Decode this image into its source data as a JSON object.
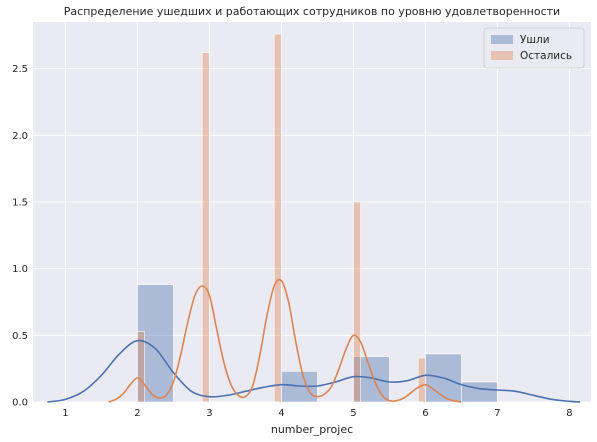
{
  "chart_data": {
    "type": "histogram",
    "title": "Распределение ушедших и работающих сотрудников по уровню удовлетворенности",
    "xlabel": "number_projec",
    "ylabel": "",
    "xlim": [
      0.55,
      8.3
    ],
    "ylim": [
      0,
      2.85
    ],
    "xticks": [
      1,
      2,
      3,
      4,
      5,
      6,
      7,
      8
    ],
    "yticks": [
      0.0,
      0.5,
      1.0,
      1.5,
      2.0,
      2.5
    ],
    "grid": true,
    "legend_position": "top-right",
    "series": [
      {
        "name": "Ушли",
        "color": "#4c72b0",
        "bins": [
          {
            "x0": 2.0,
            "x1": 2.5,
            "value": 0.88
          },
          {
            "x0": 4.0,
            "x1": 4.5,
            "value": 0.23
          },
          {
            "x0": 5.0,
            "x1": 5.5,
            "value": 0.34
          },
          {
            "x0": 6.0,
            "x1": 6.5,
            "value": 0.36
          },
          {
            "x0": 6.5,
            "x1": 7.0,
            "value": 0.15
          }
        ],
        "kde": {
          "x": [
            0.75,
            1.0,
            1.25,
            1.5,
            1.75,
            2.0,
            2.25,
            2.5,
            2.75,
            3.0,
            3.25,
            3.5,
            3.75,
            4.0,
            4.25,
            4.5,
            4.75,
            5.0,
            5.25,
            5.5,
            5.75,
            6.0,
            6.25,
            6.5,
            6.75,
            7.0,
            7.25,
            7.5,
            7.75,
            8.0,
            8.15
          ],
          "y": [
            0.0,
            0.02,
            0.08,
            0.2,
            0.36,
            0.46,
            0.4,
            0.22,
            0.08,
            0.04,
            0.05,
            0.08,
            0.11,
            0.13,
            0.12,
            0.12,
            0.15,
            0.19,
            0.18,
            0.15,
            0.16,
            0.2,
            0.18,
            0.13,
            0.1,
            0.09,
            0.08,
            0.05,
            0.02,
            0.005,
            0.0
          ]
        }
      },
      {
        "name": "Остались",
        "color": "#dd8452",
        "bins": [
          {
            "x0": 2.0,
            "x1": 2.1,
            "value": 0.53
          },
          {
            "x0": 2.9,
            "x1": 3.0,
            "value": 2.62
          },
          {
            "x0": 3.9,
            "x1": 4.0,
            "value": 2.76
          },
          {
            "x0": 5.0,
            "x1": 5.1,
            "value": 1.5
          },
          {
            "x0": 5.9,
            "x1": 6.0,
            "value": 0.33
          }
        ],
        "kde": {
          "x": [
            1.6,
            1.7,
            1.8,
            1.9,
            2.0,
            2.1,
            2.2,
            2.3,
            2.4,
            2.5,
            2.6,
            2.7,
            2.8,
            2.9,
            3.0,
            3.1,
            3.2,
            3.3,
            3.4,
            3.5,
            3.6,
            3.7,
            3.8,
            3.9,
            4.0,
            4.1,
            4.2,
            4.3,
            4.4,
            4.5,
            4.6,
            4.7,
            4.8,
            4.9,
            5.0,
            5.1,
            5.2,
            5.3,
            5.4,
            5.5,
            5.6,
            5.7,
            5.8,
            5.9,
            6.0,
            6.1,
            6.2,
            6.3,
            6.4,
            6.5
          ],
          "y": [
            0.0,
            0.02,
            0.06,
            0.13,
            0.18,
            0.13,
            0.06,
            0.03,
            0.05,
            0.15,
            0.35,
            0.6,
            0.8,
            0.87,
            0.8,
            0.55,
            0.3,
            0.13,
            0.05,
            0.04,
            0.12,
            0.35,
            0.65,
            0.87,
            0.91,
            0.75,
            0.45,
            0.2,
            0.07,
            0.04,
            0.06,
            0.12,
            0.25,
            0.4,
            0.5,
            0.45,
            0.3,
            0.15,
            0.05,
            0.01,
            0.01,
            0.03,
            0.07,
            0.11,
            0.13,
            0.1,
            0.06,
            0.025,
            0.008,
            0.0
          ]
        }
      }
    ]
  }
}
